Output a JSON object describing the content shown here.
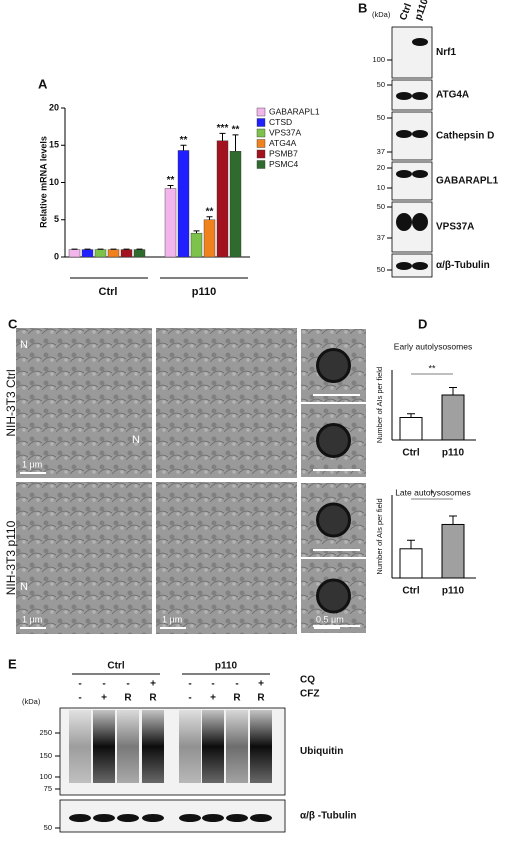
{
  "chart_data": [
    {
      "type": "bar",
      "label": "A",
      "ylabel": "Relative mRNA levels",
      "categories": [
        "Ctrl",
        "p110"
      ],
      "ylim": [
        0,
        20
      ],
      "yticks": [
        0,
        5,
        10,
        15,
        20
      ],
      "legend": "upper right",
      "series": [
        {
          "name": "GABARAPL1",
          "color": "#f2b6ec",
          "values": [
            1,
            9.2
          ],
          "errors": [
            0.05,
            0.4
          ],
          "annotations": [
            null,
            "**"
          ]
        },
        {
          "name": "CTSD",
          "color": "#1f1fff",
          "values": [
            1,
            14.3
          ],
          "errors": [
            0.05,
            0.7
          ],
          "annotations": [
            null,
            "**"
          ]
        },
        {
          "name": "VPS37A",
          "color": "#7dc24a",
          "values": [
            1,
            3.2
          ],
          "errors": [
            0.05,
            0.3
          ],
          "annotations": [
            null,
            null
          ]
        },
        {
          "name": "ATG4A",
          "color": "#f0821e",
          "values": [
            1,
            5.0
          ],
          "errors": [
            0.05,
            0.4
          ],
          "annotations": [
            null,
            "**"
          ]
        },
        {
          "name": "PSMB7",
          "color": "#a3121f",
          "values": [
            1,
            15.6
          ],
          "errors": [
            0.05,
            1.0
          ],
          "annotations": [
            null,
            "***"
          ]
        },
        {
          "name": "PSMC4",
          "color": "#2f6b2c",
          "values": [
            1,
            14.2
          ],
          "errors": [
            0.05,
            2.2
          ],
          "annotations": [
            null,
            "**"
          ]
        }
      ]
    },
    {
      "type": "bar",
      "label": "D",
      "title": "Early autolysosomes",
      "ylabel": "Number of AIs per field",
      "categories": [
        "Ctrl",
        "p110"
      ],
      "values": [
        1.5,
        3.0
      ],
      "errors": [
        0.25,
        0.5
      ],
      "colors": [
        "#ffffff",
        "#a0a0a0"
      ],
      "ylim": [
        0,
        4
      ],
      "significance": "**"
    },
    {
      "type": "bar",
      "title": "Late autolysosomes",
      "ylabel": "Number of AIs per field",
      "categories": [
        "Ctrl",
        "p110"
      ],
      "values": [
        1.2,
        2.2
      ],
      "errors": [
        0.35,
        0.35
      ],
      "colors": [
        "#ffffff",
        "#a0a0a0"
      ],
      "ylim": [
        0,
        3
      ],
      "significance": "*"
    }
  ],
  "panels": {
    "B": {
      "label": "B",
      "unit": "(kDa)",
      "lanes": [
        "Ctrl",
        "p110"
      ],
      "rows": [
        {
          "name": "Nrf1",
          "markers": [
            100
          ]
        },
        {
          "name": "ATG4A",
          "markers": [
            50
          ]
        },
        {
          "name": "Cathepsin D",
          "markers": [
            50,
            37
          ]
        },
        {
          "name": "GABARAPL1",
          "markers": [
            20,
            10
          ]
        },
        {
          "name": "VPS37A",
          "markers": [
            50,
            37
          ]
        },
        {
          "name": "α/β-Tubulin",
          "markers": [
            50
          ]
        }
      ]
    },
    "C": {
      "label": "C",
      "rows": [
        "NIH-3T3 Ctrl",
        "NIH-3T3  p110"
      ],
      "nucleus": "N",
      "scales": [
        "1 μm",
        "1 μm",
        "1 μm",
        "0.5 μm"
      ]
    },
    "E": {
      "label": "E",
      "unit": "(kDa)",
      "groups": [
        "Ctrl",
        "p110"
      ],
      "treatments": [
        {
          "name": "CQ",
          "lanes": [
            "-",
            "-",
            "-",
            "+"
          ]
        },
        {
          "name": "CFZ",
          "lanes": [
            "-",
            "+",
            "R",
            "R"
          ]
        }
      ],
      "blots": [
        {
          "name": "Ubiquitin",
          "markers": [
            250,
            150,
            100,
            75
          ]
        },
        {
          "name": "α/β -Tubulin",
          "markers": [
            50
          ]
        }
      ]
    }
  }
}
